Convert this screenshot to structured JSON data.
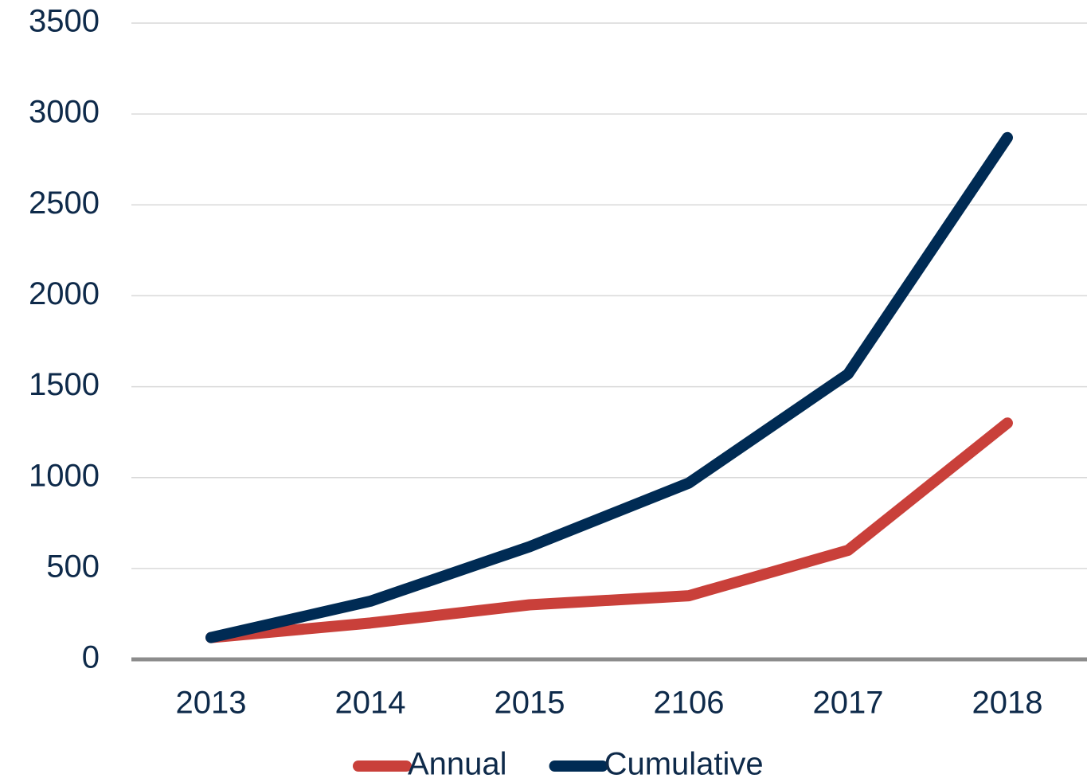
{
  "chart_data": {
    "type": "line",
    "categories": [
      "2013",
      "2014",
      "2015",
      "2106",
      "2017",
      "2018"
    ],
    "series": [
      {
        "name": "Annual",
        "color": "#c9403a",
        "values": [
          120,
          200,
          300,
          350,
          600,
          1300
        ]
      },
      {
        "name": "Cumulative",
        "color": "#002b54",
        "values": [
          120,
          320,
          620,
          970,
          1570,
          2870
        ]
      }
    ],
    "ylim": [
      0,
      3500
    ],
    "yticks": [
      0,
      500,
      1000,
      1500,
      2000,
      2500,
      3000,
      3500
    ],
    "grid": true,
    "legend": "bottom"
  }
}
